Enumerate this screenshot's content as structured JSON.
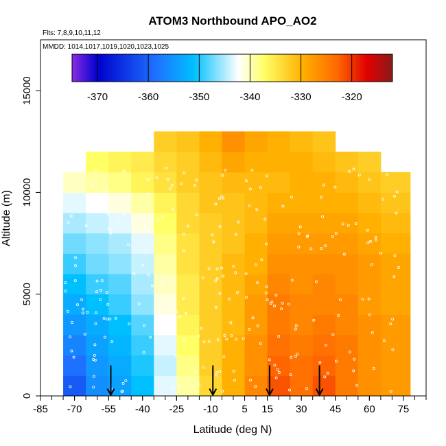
{
  "chart_data": {
    "type": "heatmap",
    "title": "ATOM3 Northbound APO_AO2",
    "flights_label": "Flts: 7,8,9,10,11,12",
    "dates_label": "MMDD: 1014,1017,1019,1020,1023,1025",
    "xlabel": "Latitude (deg N)",
    "ylabel": "Altitude (m)",
    "xlim": [
      -85,
      85
    ],
    "ylim": [
      0,
      17500
    ],
    "x_ticks": [
      "-85",
      "-70",
      "-55",
      "-40",
      "-25",
      "-10",
      "5",
      "15",
      "30",
      "45",
      "60",
      "75"
    ],
    "y_ticks": [
      "0",
      "5000",
      "10000",
      "15000"
    ],
    "colorbar": {
      "range": [
        -375,
        -312
      ],
      "tick_labels": [
        "-370",
        "-360",
        "-350",
        "-340",
        "-330",
        "-320"
      ],
      "tick_values": [
        -370,
        -360,
        -350,
        -340,
        -330,
        -320
      ],
      "colors": [
        "#8A2BE2",
        "#0000CD",
        "#1E90FF",
        "#00BFFF",
        "#FFFFFF",
        "#FFFF66",
        "#FFB000",
        "#FF6600",
        "#E00000",
        "#8B1A1A"
      ]
    },
    "arrow_latitudes": [
      -54,
      -9,
      16,
      38
    ],
    "field": {
      "lat_edges": [
        -75,
        -65,
        -55,
        -45,
        -35,
        -25,
        -15,
        -5,
        5,
        15,
        25,
        35,
        45,
        55,
        65,
        78
      ],
      "alt_edges": [
        0,
        1000,
        2000,
        3000,
        4000,
        5000,
        6000,
        7000,
        8000,
        9000,
        10000,
        11000,
        12000,
        13000
      ],
      "values": [
        [
          -362,
          -357,
          -355,
          -352,
          -344,
          -340,
          -334,
          -330,
          -326,
          -322,
          -324,
          -322,
          -325,
          -327,
          -328
        ],
        [
          -360,
          -356,
          -354,
          -351,
          -345,
          -339,
          -333,
          -330,
          -327,
          -323,
          -324,
          -323,
          -325,
          -327,
          -328
        ],
        [
          -358,
          -355,
          -353,
          -350,
          -344,
          -338,
          -333,
          -330,
          -327,
          -324,
          -325,
          -324,
          -325,
          -327,
          -328
        ],
        [
          -356,
          -354,
          -352,
          -349,
          -343,
          -337,
          -333,
          -331,
          -328,
          -325,
          -326,
          -325,
          -326,
          -327,
          -328
        ],
        [
          -354,
          -352,
          -350,
          -347,
          -342,
          -336,
          -333,
          -331,
          -328,
          -325,
          -326,
          -326,
          -326,
          -328,
          -329
        ],
        [
          -352,
          -350,
          -349,
          -346,
          -341,
          -336,
          -333,
          -331,
          -329,
          -326,
          -327,
          -326,
          -327,
          -328,
          -329
        ],
        [
          -350,
          -348,
          -347,
          -345,
          -340,
          -335,
          -333,
          -331,
          -330,
          -327,
          -327,
          -327,
          -327,
          -328,
          -329
        ],
        [
          -348,
          -347,
          -346,
          -344,
          -339,
          -335,
          -333,
          -332,
          -330,
          -328,
          -328,
          -328,
          -328,
          -329,
          -330
        ],
        [
          -346,
          -345,
          -344,
          -342,
          -338,
          -334,
          -333,
          -332,
          -331,
          -329,
          -329,
          -329,
          -329,
          -330,
          -331
        ],
        [
          -344,
          -343,
          -342,
          -340,
          -337,
          -334,
          -332,
          -332,
          -331,
          -330,
          -330,
          -330,
          -330,
          -331,
          -332
        ],
        [
          -341,
          -340,
          -339,
          -337,
          -335,
          -333,
          -332,
          -331,
          -331,
          -331,
          -330,
          -330,
          -331,
          -332,
          -333
        ],
        [
          null,
          -338,
          -337,
          -336,
          -334,
          -333,
          -331,
          -329,
          -330,
          -330,
          -330,
          -331,
          -332,
          -333,
          null
        ],
        [
          null,
          null,
          null,
          null,
          -333,
          -332,
          -330,
          -327,
          -329,
          -330,
          -331,
          -332,
          null,
          null,
          null
        ]
      ]
    }
  }
}
